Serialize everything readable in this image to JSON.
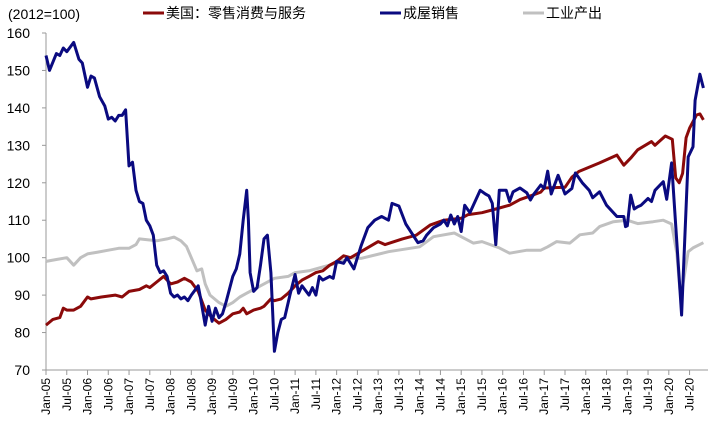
{
  "chart_data": {
    "type": "line",
    "unit_note": "(2012=100)",
    "x_note": "points are [months since Jan-05, value]",
    "ylim": [
      70,
      160
    ],
    "yticks": [
      70,
      80,
      90,
      100,
      110,
      120,
      130,
      140,
      150,
      160
    ],
    "xticks": [
      "Jan-05",
      "Jul-05",
      "Jan-06",
      "Jul-06",
      "Jan-07",
      "Jul-07",
      "Jan-08",
      "Jul-08",
      "Jan-09",
      "Jul-09",
      "Jan-10",
      "Jul-10",
      "Jan-11",
      "Jul-11",
      "Jan-12",
      "Jul-12",
      "Jan-13",
      "Jul-13",
      "Jan-14",
      "Jul-14",
      "Jan-15",
      "Jul-15",
      "Jan-16",
      "Jul-16",
      "Jan-17",
      "Jul-17",
      "Jan-18",
      "Jul-18",
      "Jan-19",
      "Jul-19",
      "Jan-20",
      "Jul-20"
    ],
    "legend_position": "top",
    "grid": false,
    "series": [
      {
        "name": "美国：零售消费与服务",
        "color": "#8B0A0A",
        "points": [
          [
            0,
            82
          ],
          [
            2,
            83.5
          ],
          [
            4,
            84
          ],
          [
            5,
            86.5
          ],
          [
            6,
            86
          ],
          [
            8,
            86
          ],
          [
            10,
            87
          ],
          [
            12,
            89.5
          ],
          [
            13,
            89
          ],
          [
            16,
            89.5
          ],
          [
            20,
            90
          ],
          [
            22,
            89.5
          ],
          [
            24,
            91
          ],
          [
            27,
            91.5
          ],
          [
            29,
            92.5
          ],
          [
            30,
            92
          ],
          [
            32,
            93.5
          ],
          [
            34,
            95
          ],
          [
            36,
            93
          ],
          [
            38,
            93.5
          ],
          [
            40,
            94.5
          ],
          [
            42,
            93.5
          ],
          [
            44,
            91
          ],
          [
            46,
            86
          ],
          [
            48,
            84
          ],
          [
            50,
            82.5
          ],
          [
            52,
            83.5
          ],
          [
            54,
            85
          ],
          [
            56,
            85.5
          ],
          [
            57,
            86.5
          ],
          [
            58,
            85
          ],
          [
            60,
            86
          ],
          [
            62,
            86.5
          ],
          [
            63,
            87
          ],
          [
            65,
            89
          ],
          [
            66,
            88.5
          ],
          [
            68,
            89
          ],
          [
            70,
            90.5
          ],
          [
            72,
            92.5
          ],
          [
            74,
            94
          ],
          [
            76,
            95
          ],
          [
            78,
            96
          ],
          [
            80,
            96.5
          ],
          [
            82,
            98
          ],
          [
            84,
            99
          ],
          [
            86,
            100.5
          ],
          [
            88,
            100
          ],
          [
            91,
            101.6
          ],
          [
            96,
            104.3
          ],
          [
            98,
            103.5
          ],
          [
            103,
            105
          ],
          [
            107,
            106
          ],
          [
            111,
            108.7
          ],
          [
            115,
            110
          ],
          [
            120,
            110.5
          ],
          [
            122,
            111.5
          ],
          [
            126,
            112
          ],
          [
            130,
            113
          ],
          [
            134,
            114
          ],
          [
            137,
            115.5
          ],
          [
            140,
            116.5
          ],
          [
            143,
            117.5
          ],
          [
            144,
            118.6
          ],
          [
            150,
            118.8
          ],
          [
            152,
            121.5
          ],
          [
            154,
            123
          ],
          [
            160,
            125.3
          ],
          [
            165,
            127.4
          ],
          [
            167,
            124.7
          ],
          [
            169,
            126.6
          ],
          [
            171,
            128.8
          ],
          [
            175,
            131
          ],
          [
            176,
            130
          ],
          [
            179,
            132.5
          ],
          [
            181,
            131.6
          ],
          [
            182,
            121.3
          ],
          [
            183,
            120
          ],
          [
            184,
            122.5
          ],
          [
            185,
            132
          ],
          [
            186,
            134.6
          ],
          [
            188,
            138.1
          ],
          [
            189,
            138.4
          ],
          [
            190,
            136.8
          ]
        ]
      },
      {
        "name": "成屋销售",
        "color": "#0A0A80",
        "points": [
          [
            0,
            154
          ],
          [
            1,
            150
          ],
          [
            3,
            154.5
          ],
          [
            4,
            154
          ],
          [
            5,
            156
          ],
          [
            6,
            155
          ],
          [
            8,
            157.5
          ],
          [
            9.5,
            153
          ],
          [
            10.5,
            152
          ],
          [
            12,
            145.5
          ],
          [
            13,
            148.5
          ],
          [
            14,
            148
          ],
          [
            15.5,
            143
          ],
          [
            17,
            140.5
          ],
          [
            18,
            137
          ],
          [
            19,
            137.5
          ],
          [
            20,
            136.5
          ],
          [
            21,
            138
          ],
          [
            22,
            138
          ],
          [
            23,
            139.5
          ],
          [
            24,
            124.5
          ],
          [
            25,
            125.5
          ],
          [
            26,
            118
          ],
          [
            27,
            115
          ],
          [
            28,
            114.5
          ],
          [
            29,
            110
          ],
          [
            30,
            108.5
          ],
          [
            31,
            106
          ],
          [
            32,
            98
          ],
          [
            33,
            96
          ],
          [
            34,
            96.5
          ],
          [
            35,
            95
          ],
          [
            36,
            90.5
          ],
          [
            37,
            89.5
          ],
          [
            38,
            90
          ],
          [
            39,
            89
          ],
          [
            40,
            89.5
          ],
          [
            41,
            88.5
          ],
          [
            42,
            90
          ],
          [
            44,
            92.5
          ],
          [
            44.5,
            90
          ],
          [
            46,
            82
          ],
          [
            47,
            87
          ],
          [
            48,
            83
          ],
          [
            49,
            86.5
          ],
          [
            50,
            84
          ],
          [
            51,
            85
          ],
          [
            52,
            88
          ],
          [
            54,
            95
          ],
          [
            55,
            97
          ],
          [
            56,
            101
          ],
          [
            57,
            110
          ],
          [
            58,
            118
          ],
          [
            58.5,
            110
          ],
          [
            59,
            96
          ],
          [
            60,
            91
          ],
          [
            61,
            92
          ],
          [
            62,
            98
          ],
          [
            63,
            105
          ],
          [
            64,
            106
          ],
          [
            65,
            96
          ],
          [
            66,
            75
          ],
          [
            67,
            80
          ],
          [
            68,
            83.5
          ],
          [
            69,
            84
          ],
          [
            70.5,
            90
          ],
          [
            72,
            95.5
          ],
          [
            73,
            90.5
          ],
          [
            74,
            92.5
          ],
          [
            76,
            90
          ],
          [
            77,
            92
          ],
          [
            78,
            90
          ],
          [
            79,
            95
          ],
          [
            80,
            94
          ],
          [
            82,
            95
          ],
          [
            83,
            94.5
          ],
          [
            84,
            99
          ],
          [
            86,
            98.5
          ],
          [
            87,
            100
          ],
          [
            89,
            97
          ],
          [
            90,
            100
          ],
          [
            91,
            103
          ],
          [
            93,
            108
          ],
          [
            95,
            110
          ],
          [
            97,
            111
          ],
          [
            99,
            110
          ],
          [
            100,
            114.5
          ],
          [
            102,
            113.8
          ],
          [
            104,
            109
          ],
          [
            107.5,
            104
          ],
          [
            109,
            104.5
          ],
          [
            110,
            106
          ],
          [
            112,
            108
          ],
          [
            114,
            109
          ],
          [
            115,
            110
          ],
          [
            116,
            108.5
          ],
          [
            117,
            111.4
          ],
          [
            118,
            109
          ],
          [
            119,
            111
          ],
          [
            120,
            107
          ],
          [
            121,
            114
          ],
          [
            122.5,
            112
          ],
          [
            125.5,
            118
          ],
          [
            127,
            117
          ],
          [
            128,
            116.5
          ],
          [
            129,
            114.5
          ],
          [
            130,
            103.5
          ],
          [
            131,
            118
          ],
          [
            133,
            118
          ],
          [
            134,
            115
          ],
          [
            135,
            117.6
          ],
          [
            137,
            118.6
          ],
          [
            139,
            117.3
          ],
          [
            140,
            115.4
          ],
          [
            141,
            117
          ],
          [
            143,
            119.4
          ],
          [
            144,
            118.5
          ],
          [
            145,
            123.1
          ],
          [
            146,
            117
          ],
          [
            148,
            122
          ],
          [
            150,
            117
          ],
          [
            152,
            118.5
          ],
          [
            153,
            122.6
          ],
          [
            155,
            120
          ],
          [
            157,
            118
          ],
          [
            158,
            116
          ],
          [
            160,
            117.6
          ],
          [
            162,
            114
          ],
          [
            165,
            111
          ],
          [
            167,
            111
          ],
          [
            167.5,
            108.3
          ],
          [
            168,
            108.5
          ],
          [
            169,
            116.7
          ],
          [
            170,
            113
          ],
          [
            171,
            113.6
          ],
          [
            172,
            114
          ],
          [
            174,
            115.8
          ],
          [
            175,
            115
          ],
          [
            176,
            118
          ],
          [
            178.4,
            120.3
          ],
          [
            179.4,
            115.6
          ],
          [
            180.8,
            125.3
          ],
          [
            183.7,
            84.7
          ],
          [
            185.6,
            126.9
          ],
          [
            187,
            129.6
          ],
          [
            187.6,
            142
          ],
          [
            189,
            149
          ],
          [
            190,
            145.3
          ]
        ]
      },
      {
        "name": "工业产出",
        "color": "#C0C0C0",
        "points": [
          [
            0,
            99
          ],
          [
            3,
            99.5
          ],
          [
            6,
            100
          ],
          [
            8,
            98
          ],
          [
            10,
            100
          ],
          [
            12,
            101
          ],
          [
            15,
            101.5
          ],
          [
            18,
            102
          ],
          [
            21,
            102.5
          ],
          [
            24,
            102.5
          ],
          [
            26,
            103.5
          ],
          [
            27,
            105
          ],
          [
            32,
            104.5
          ],
          [
            35,
            105
          ],
          [
            37,
            105.5
          ],
          [
            39,
            104.5
          ],
          [
            40.6,
            103
          ],
          [
            42,
            100
          ],
          [
            43.6,
            96.5
          ],
          [
            45,
            97
          ],
          [
            46,
            93
          ],
          [
            47.4,
            90
          ],
          [
            50,
            88
          ],
          [
            52,
            87
          ],
          [
            54,
            88
          ],
          [
            56,
            89.5
          ],
          [
            58,
            90.5
          ],
          [
            60,
            91.5
          ],
          [
            63,
            93
          ],
          [
            66,
            94.5
          ],
          [
            70,
            95
          ],
          [
            72,
            96
          ],
          [
            76,
            96.5
          ],
          [
            80,
            97.5
          ],
          [
            84,
            98.5
          ],
          [
            88,
            100
          ],
          [
            91,
            99.8
          ],
          [
            99,
            101.6
          ],
          [
            108,
            102.9
          ],
          [
            112,
            105.6
          ],
          [
            118,
            106.6
          ],
          [
            120,
            105.6
          ],
          [
            123.5,
            103.9
          ],
          [
            126,
            104.3
          ],
          [
            131,
            102.6
          ],
          [
            134,
            101.2
          ],
          [
            139,
            102
          ],
          [
            143,
            102
          ],
          [
            145,
            102.9
          ],
          [
            147.6,
            104.3
          ],
          [
            151.4,
            103.9
          ],
          [
            154.3,
            106.1
          ],
          [
            158,
            106.6
          ],
          [
            160,
            108.3
          ],
          [
            164,
            109.6
          ],
          [
            168,
            110
          ],
          [
            171,
            109.1
          ],
          [
            175.5,
            109.6
          ],
          [
            178.4,
            110
          ],
          [
            180.8,
            109
          ],
          [
            182.3,
            101.2
          ],
          [
            183.2,
            91.4
          ],
          [
            184,
            92.3
          ],
          [
            185.6,
            101.6
          ],
          [
            187,
            102.6
          ],
          [
            190,
            104
          ]
        ]
      }
    ]
  }
}
